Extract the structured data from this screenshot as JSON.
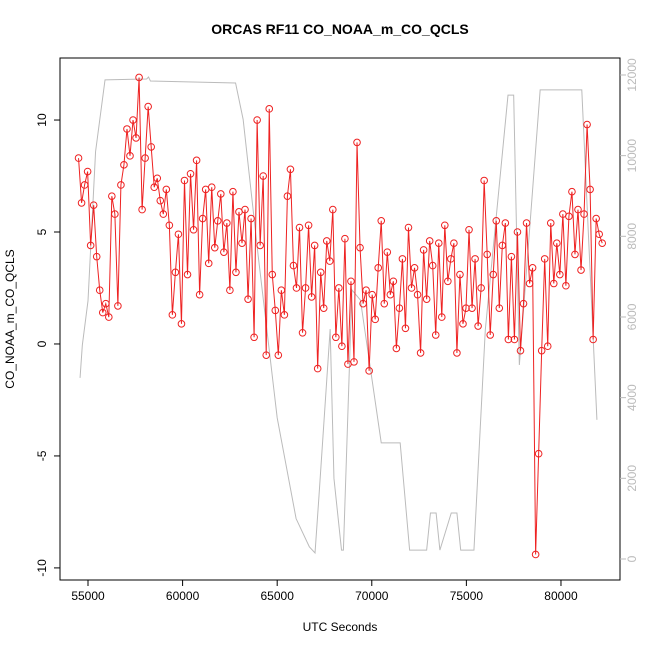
{
  "chart_data": {
    "type": "line",
    "title": "ORCAS RF11 CO_NOAA_m_CO_QCLS",
    "x_label": "UTC Seconds",
    "y_label": "CO_NOAA_m_CO_QCLS",
    "xlim": [
      53520,
      83120
    ],
    "ylim": [
      -10.54,
      12.77
    ],
    "y2lim": [
      -521,
      12421
    ],
    "xticks": [
      55000,
      60000,
      65000,
      70000,
      75000,
      80000
    ],
    "yticks": [
      -10,
      -5,
      0,
      5,
      10
    ],
    "y2ticks": [
      0,
      2000,
      4000,
      6000,
      8000,
      10000,
      12000
    ],
    "series": [
      {
        "color": "#bbbbbb",
        "axis": "y2",
        "markers": false,
        "x": [
          54580,
          54700,
          55000,
          55400,
          55900,
          58100,
          58200,
          58300,
          62800,
          63200,
          64000,
          65000,
          66000,
          66700,
          67000,
          67200,
          67800,
          68000,
          68400,
          68500,
          68950,
          69400,
          70500,
          71000,
          71500,
          72000,
          72900,
          73100,
          73400,
          73600,
          74200,
          74500,
          74700,
          75400,
          76000,
          77200,
          77500,
          77800,
          78900,
          81100,
          81900
        ],
        "values": [
          4490,
          5300,
          6400,
          10100,
          11880,
          11900,
          11950,
          11850,
          11800,
          10900,
          7500,
          3500,
          1000,
          300,
          150,
          1500,
          5700,
          2000,
          220,
          220,
          6670,
          6420,
          2880,
          2880,
          2880,
          220,
          220,
          1140,
          1140,
          220,
          1140,
          1140,
          220,
          220,
          5680,
          11500,
          11500,
          4810,
          11630,
          11630,
          3450
        ]
      },
      {
        "color": "#ee2222",
        "axis": "y",
        "markers": true,
        "x": [
          54500,
          54660,
          54820,
          54980,
          55140,
          55300,
          55460,
          55620,
          55780,
          55940,
          56100,
          56260,
          56420,
          56580,
          56740,
          56900,
          57060,
          57220,
          57380,
          57540,
          57700,
          57860,
          58020,
          58180,
          58340,
          58500,
          58660,
          58820,
          58980,
          59140,
          59300,
          59460,
          59620,
          59780,
          59940,
          60100,
          60260,
          60420,
          60580,
          60740,
          60900,
          61060,
          61220,
          61380,
          61540,
          61700,
          61860,
          62020,
          62180,
          62340,
          62500,
          62660,
          62820,
          62980,
          63140,
          63300,
          63460,
          63620,
          63780,
          63940,
          64100,
          64260,
          64420,
          64580,
          64740,
          64900,
          65060,
          65220,
          65380,
          65540,
          65700,
          65860,
          66020,
          66180,
          66340,
          66500,
          66660,
          66820,
          66980,
          67140,
          67300,
          67460,
          67620,
          67780,
          67940,
          68100,
          68260,
          68420,
          68580,
          68740,
          68900,
          69060,
          69220,
          69380,
          69540,
          69700,
          69860,
          70020,
          70180,
          70340,
          70500,
          70660,
          70820,
          70980,
          71140,
          71300,
          71460,
          71620,
          71780,
          71940,
          72100,
          72260,
          72420,
          72580,
          72740,
          72900,
          73060,
          73220,
          73380,
          73540,
          73700,
          73860,
          74020,
          74180,
          74340,
          74500,
          74660,
          74820,
          74980,
          75140,
          75300,
          75460,
          75620,
          75780,
          75940,
          76100,
          76260,
          76420,
          76580,
          76740,
          76900,
          77060,
          77220,
          77380,
          77540,
          77700,
          77860,
          78020,
          78180,
          78340,
          78500,
          78660,
          78820,
          78980,
          79140,
          79300,
          79460,
          79620,
          79780,
          79940,
          80100,
          80260,
          80420,
          80580,
          80740,
          80900,
          81060,
          81220,
          81380,
          81540,
          81700,
          81860,
          82020,
          82180
        ],
        "values": [
          8.3,
          6.3,
          7.1,
          7.7,
          4.4,
          6.2,
          3.9,
          2.4,
          1.4,
          1.8,
          1.2,
          6.6,
          5.8,
          1.7,
          7.1,
          8.0,
          9.6,
          8.4,
          10.0,
          9.2,
          11.9,
          6.0,
          8.3,
          10.6,
          8.8,
          7.0,
          7.4,
          6.4,
          5.8,
          6.9,
          5.3,
          1.3,
          3.2,
          4.9,
          0.9,
          7.3,
          3.1,
          7.6,
          5.1,
          8.2,
          2.2,
          5.6,
          6.9,
          3.6,
          7.0,
          4.3,
          5.5,
          6.7,
          4.1,
          5.4,
          2.4,
          6.8,
          3.2,
          5.9,
          4.5,
          6.0,
          2.0,
          5.6,
          0.3,
          10.0,
          4.4,
          7.5,
          -0.5,
          10.5,
          3.1,
          1.5,
          -0.5,
          2.4,
          1.3,
          6.6,
          7.8,
          3.5,
          2.5,
          5.2,
          0.5,
          2.5,
          5.3,
          2.1,
          4.4,
          -1.1,
          3.2,
          1.6,
          4.6,
          3.7,
          6.0,
          0.3,
          2.5,
          -0.1,
          4.7,
          -0.9,
          2.8,
          -0.8,
          9.0,
          4.3,
          1.8,
          2.4,
          -1.2,
          2.2,
          1.1,
          3.4,
          5.5,
          1.8,
          4.1,
          2.2,
          2.8,
          -0.2,
          1.6,
          3.8,
          0.7,
          5.2,
          2.5,
          3.4,
          2.2,
          -0.4,
          4.2,
          2.0,
          4.6,
          3.5,
          0.4,
          4.5,
          1.2,
          5.3,
          2.8,
          3.8,
          4.5,
          -0.4,
          3.1,
          0.9,
          1.6,
          5.1,
          1.6,
          3.8,
          0.8,
          2.5,
          7.3,
          4.0,
          0.4,
          3.1,
          5.5,
          1.6,
          4.4,
          5.4,
          0.2,
          3.9,
          0.2,
          5.0,
          -0.3,
          1.8,
          5.4,
          2.7,
          3.4,
          -9.4,
          -4.9,
          -0.3,
          3.8,
          -0.1,
          5.4,
          2.7,
          4.5,
          3.1,
          5.8,
          2.6,
          5.7,
          6.8,
          4.0,
          6.0,
          3.3,
          5.8,
          9.8,
          6.9,
          0.2,
          5.6,
          4.9,
          4.5
        ]
      }
    ]
  }
}
